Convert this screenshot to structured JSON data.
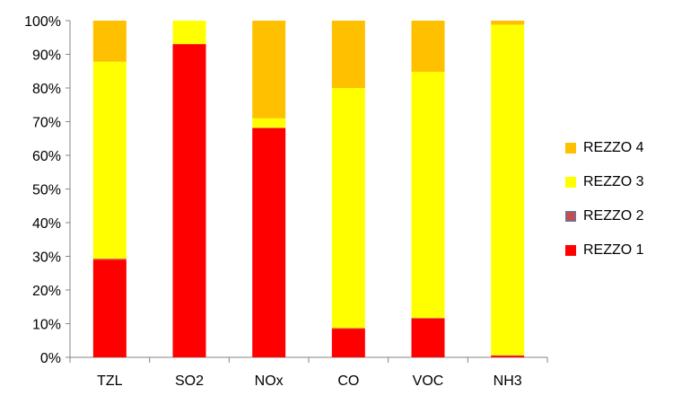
{
  "chart_data": {
    "type": "bar",
    "stacked": true,
    "percent_stacked": true,
    "categories": [
      "TZL",
      "SO2",
      "NOx",
      "CO",
      "VOC",
      "NH3"
    ],
    "series": [
      {
        "name": "REZZO 1",
        "color": "#FF0000",
        "values": [
          29,
          93,
          68,
          8.5,
          11.5,
          0.5
        ]
      },
      {
        "name": "REZZO 2",
        "color": "#C0504D",
        "values": [
          0.3,
          0.1,
          0.2,
          0.2,
          0.2,
          0.1
        ]
      },
      {
        "name": "REZZO 3",
        "color": "#FFFF00",
        "values": [
          58.5,
          6.9,
          2.8,
          71.3,
          73.1,
          98.2
        ]
      },
      {
        "name": "REZZO 4",
        "color": "#FFC000",
        "values": [
          12.2,
          0,
          29,
          20,
          15.2,
          1.2
        ]
      }
    ],
    "y_ticks": [
      "0%",
      "10%",
      "20%",
      "30%",
      "40%",
      "50%",
      "60%",
      "70%",
      "80%",
      "90%",
      "100%"
    ],
    "ylim": [
      0,
      100
    ],
    "grid": false,
    "legend_position": "right",
    "legend_order": [
      "REZZO 4",
      "REZZO 3",
      "REZZO 2",
      "REZZO 1"
    ],
    "title": "",
    "xlabel": "",
    "ylabel": ""
  }
}
